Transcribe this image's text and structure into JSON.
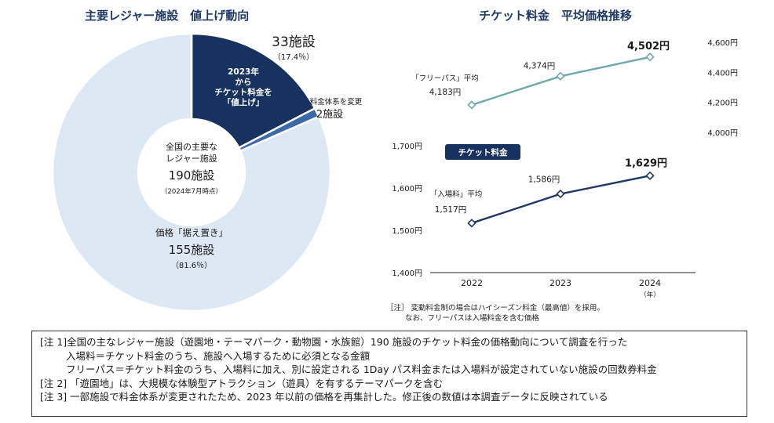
{
  "pie": {
    "title": "主要レジャー施設　値上げ動向",
    "center": {
      "line1": "全国の主要な",
      "line2": "レジャー施設",
      "count": "190施設",
      "date": "（2024年7月時点）"
    },
    "raise": {
      "lines": [
        "2023年",
        "から",
        "チケット料金を",
        "「値上げ」"
      ],
      "count": "33施設",
      "pct": "（17.4％）"
    },
    "change": {
      "label": "料金体系を変更",
      "count": "2施設"
    },
    "keep": {
      "label": "価格「据え置き」",
      "count": "155施設",
      "pct": "（81.6％）"
    }
  },
  "line_chart": {
    "title": "チケット料金　平均価格推移",
    "badge": "チケット料金",
    "year_unit": "（年）",
    "footnote": {
      "line1": "［注］ 変動料金制の場合はハイシーズン料金（最高値）を採用。",
      "line2": "なお、フリーパスは入場料金を含む価格"
    }
  },
  "notes": [
    "[注 1]全国の主なレジャー施設（遊園地・テーマパーク・動物園・水族館）190 施設のチケット料金の価格動向について調査を行った",
    "入場料＝チケット料金のうち、施設へ入場するために必須となる金額",
    "フリーパス＝チケット料金のうち、入場料に加え、別に設定される 1Day パス料金または入場料が設定されていない施設の回数券料金",
    "[注 2] 「遊園地」は、大規模な体験型アトラクション（遊具）を有するテーマパークを含む",
    "[注 3] 一部施設で料金体系が変更されたため、2023 年以前の価格を再集計した。修正後の数値は本調査データに反映されている"
  ],
  "colors": {
    "navy": "#17325f",
    "mid_blue": "#3a6aa8",
    "light_blue": "#dde8f5",
    "teal": "#6fa9a8",
    "dark_line": "#1f3864"
  },
  "chart_data": [
    {
      "type": "pie",
      "title": "主要レジャー施設　値上げ動向",
      "slices": [
        {
          "label": "2023年からチケット料金を「値上げ」",
          "value": 33,
          "percent": 17.4
        },
        {
          "label": "料金体系を変更",
          "value": 2
        },
        {
          "label": "価格「据え置き」",
          "value": 155,
          "percent": 81.6
        }
      ],
      "total": 190
    },
    {
      "type": "line",
      "title": "チケット料金　平均価格推移",
      "x": [
        2022,
        2023,
        2024
      ],
      "x_ticks": [
        "2022",
        "2023",
        "2024"
      ],
      "series": [
        {
          "name": "「フリーパス」平均",
          "values": [
            4183,
            4374,
            4502
          ],
          "labels": [
            "4,183円",
            "4,374円",
            "4,502円"
          ],
          "axis": "right",
          "ylim": [
            4000,
            4600
          ],
          "ticks": [
            "4,000円",
            "4,200円",
            "4,400円",
            "4,600円"
          ]
        },
        {
          "name": "「入場料」平均",
          "values": [
            1517,
            1586,
            1629
          ],
          "labels": [
            "1,517円",
            "1,586円",
            "1,629円"
          ],
          "axis": "left",
          "ylim": [
            1400,
            1700
          ],
          "ticks": [
            "1,400円",
            "1,500円",
            "1,600円",
            "1,700円"
          ]
        }
      ]
    }
  ]
}
